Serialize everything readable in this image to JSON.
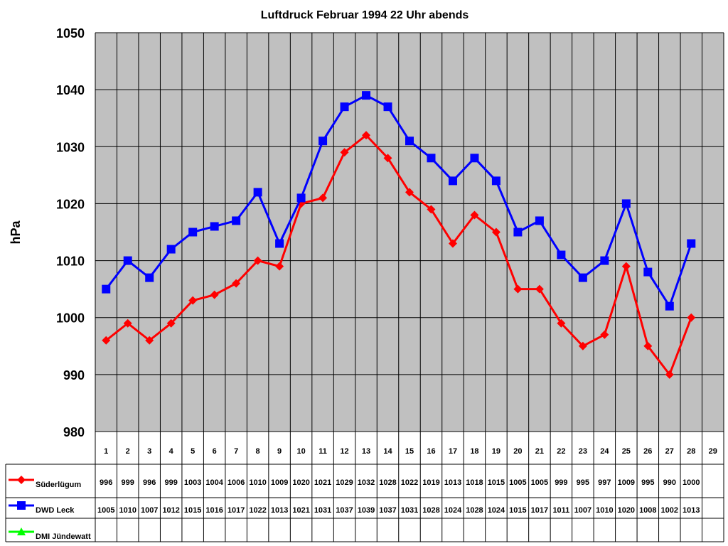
{
  "chart_data": {
    "type": "line",
    "title": "Luftdruck Februar 1994 22 Uhr abends",
    "ylabel": "hPa",
    "xlabel": "",
    "ylim": [
      980,
      1050
    ],
    "yticks": [
      980,
      990,
      1000,
      1010,
      1020,
      1030,
      1040,
      1050
    ],
    "grid": true,
    "legend": "bottom-left data table",
    "plot_background": "#c0c0c0",
    "categories": [
      "1",
      "2",
      "3",
      "4",
      "5",
      "6",
      "7",
      "8",
      "9",
      "10",
      "11",
      "12",
      "13",
      "14",
      "15",
      "16",
      "17",
      "18",
      "19",
      "20",
      "21",
      "22",
      "23",
      "24",
      "25",
      "26",
      "27",
      "28",
      "29"
    ],
    "series": [
      {
        "name": "Süderlügum",
        "color": "#ff0000",
        "marker": "diamond",
        "values": [
          996,
          999,
          996,
          999,
          1003,
          1004,
          1006,
          1010,
          1009,
          1020,
          1021,
          1029,
          1032,
          1028,
          1022,
          1019,
          1013,
          1018,
          1015,
          1005,
          1005,
          999,
          995,
          997,
          1009,
          995,
          990,
          1000,
          null
        ]
      },
      {
        "name": "DWD Leck",
        "color": "#0000ff",
        "marker": "square",
        "values": [
          1005,
          1010,
          1007,
          1012,
          1015,
          1016,
          1017,
          1022,
          1013,
          1021,
          1031,
          1037,
          1039,
          1037,
          1031,
          1028,
          1024,
          1028,
          1024,
          1015,
          1017,
          1011,
          1007,
          1010,
          1020,
          1008,
          1002,
          1013,
          null
        ]
      },
      {
        "name": "DMI Jündewatt",
        "color": "#00ff00",
        "marker": "triangle",
        "values": [
          null,
          null,
          null,
          null,
          null,
          null,
          null,
          null,
          null,
          null,
          null,
          null,
          null,
          null,
          null,
          null,
          null,
          null,
          null,
          null,
          null,
          null,
          null,
          null,
          null,
          null,
          null,
          null,
          null
        ]
      }
    ]
  }
}
